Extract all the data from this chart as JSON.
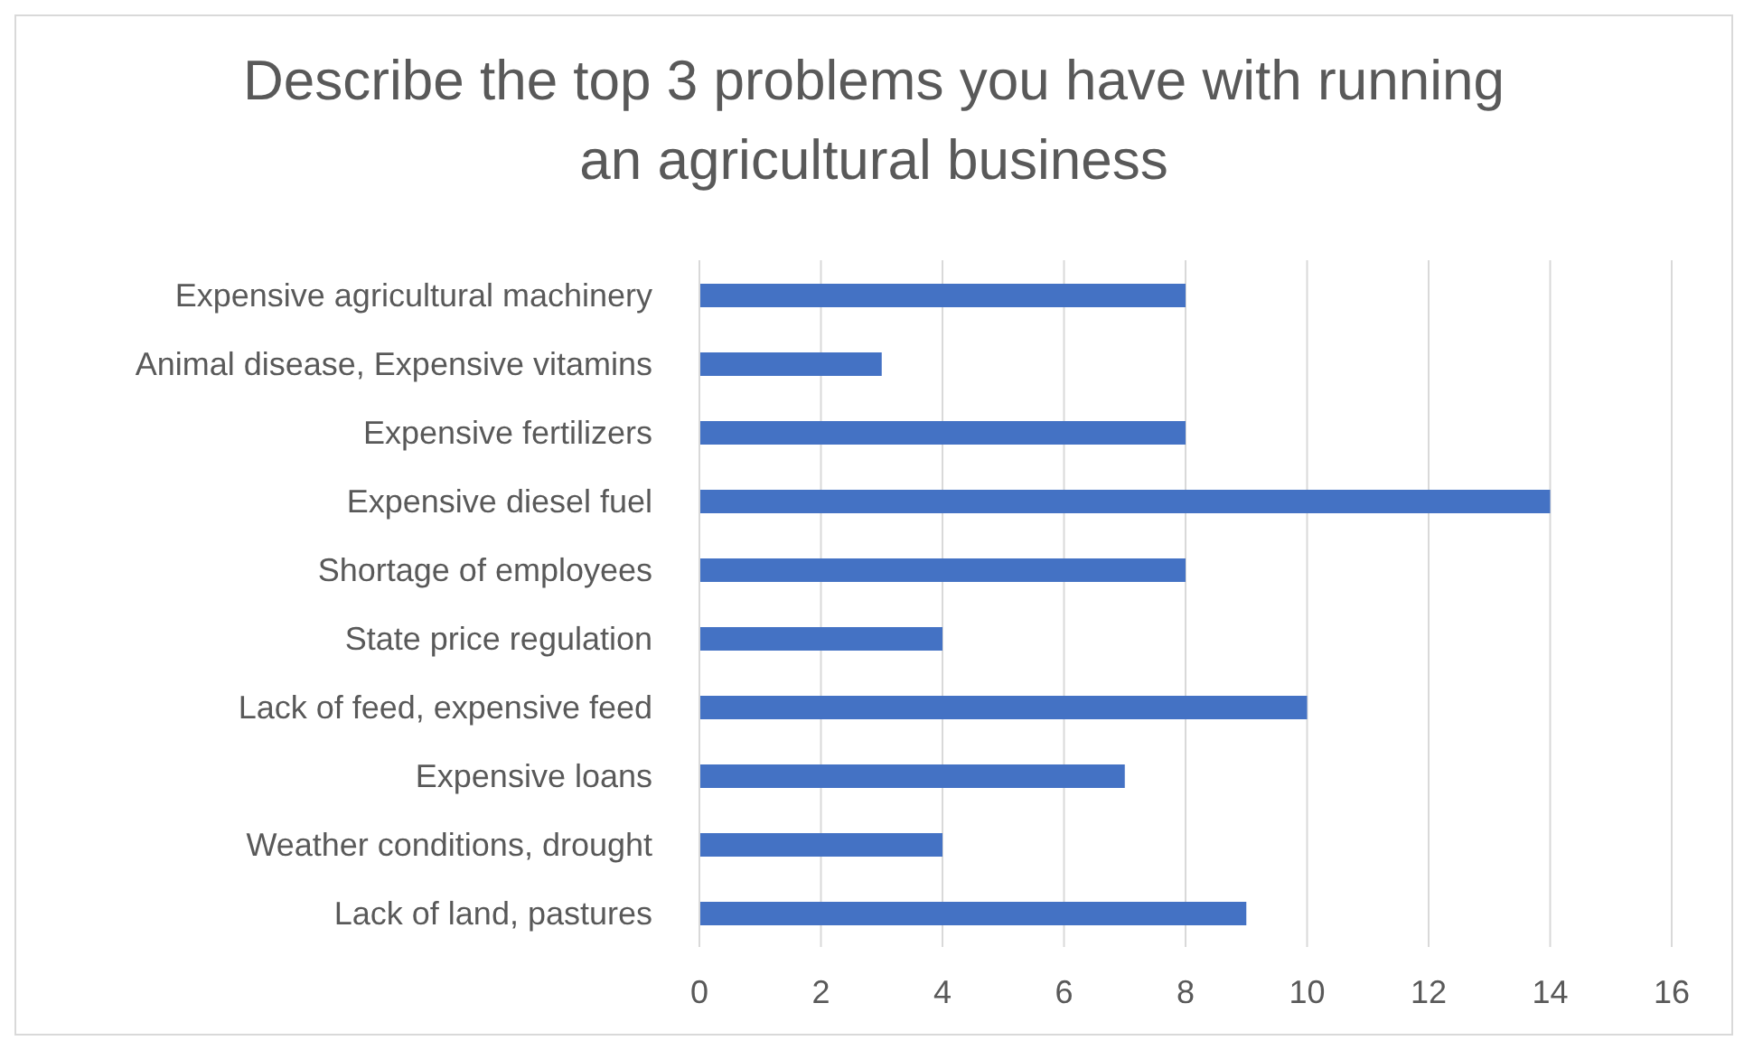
{
  "chart_data": {
    "type": "bar",
    "orientation": "horizontal",
    "title": "Describe the top 3 problems you have with running an agricultural business",
    "categories": [
      "Expensive agricultural machinery",
      "Animal disease, Expensive vitamins",
      "Expensive fertilizers",
      "Expensive diesel fuel",
      "Shortage of employees",
      "State price regulation",
      "Lack of feed, expensive feed",
      "Expensive loans",
      "Weather conditions, drought",
      "Lack of land, pastures"
    ],
    "values": [
      8,
      3,
      8,
      14,
      8,
      4,
      10,
      7,
      4,
      9
    ],
    "color": "#4472c4",
    "xlim": [
      0,
      16
    ],
    "xticks": [
      0,
      2,
      4,
      6,
      8,
      10,
      12,
      14,
      16
    ],
    "grid": "x"
  }
}
